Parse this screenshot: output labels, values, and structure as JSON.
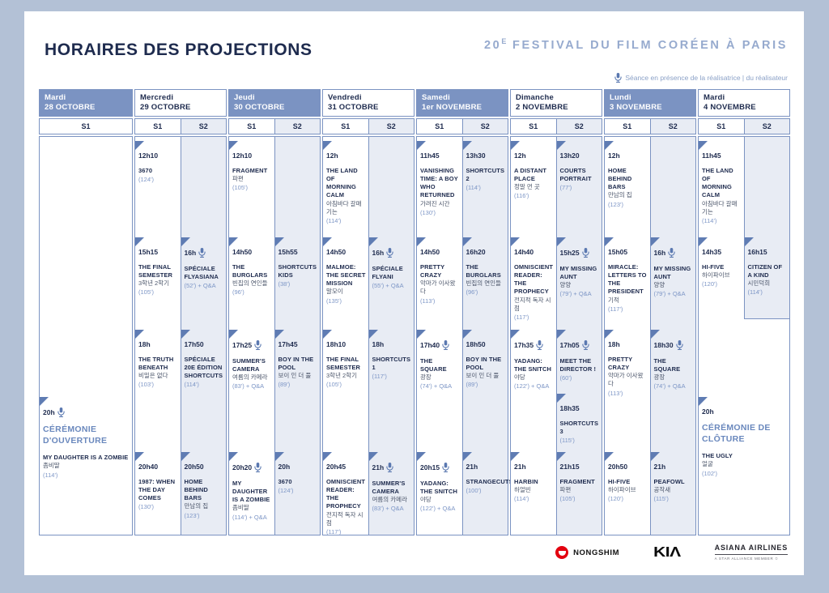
{
  "page": {
    "title": "HORAIRES DES PROJECTIONS",
    "festival_num": "20",
    "festival_sup": "E",
    "festival_rest": " FESTIVAL DU FILM CORÉEN À PARIS",
    "legend": "Séance en présence de la réalisatrice | du réalisateur"
  },
  "colors": {
    "frame": "#b3c1d6",
    "navy": "#1e2b4e",
    "header_blue": "#7b93c2",
    "s2_bg": "#e8ecf4",
    "duration_blue": "#7d96c6",
    "ceremony_blue": "#6a88bd",
    "triangle_blue": "#5f7cb3",
    "nongshim_red": "#e3000f"
  },
  "days": [
    {
      "name": "Mardi",
      "date": "28 OCTOBRE",
      "header": "blue",
      "wide": true,
      "screens": [
        {
          "label": "S1",
          "sessions": [
            {
              "row": "cer",
              "time": "20h",
              "mic": true,
              "ceremony": "CÉRÉMONIE D'OUVERTURE",
              "title": "MY DAUGHTER IS A ZOMBIE",
              "kr": "좀비딸",
              "dur": "(114')"
            }
          ]
        }
      ]
    },
    {
      "name": "Mercredi",
      "date": "29 OCTOBRE",
      "header": "light",
      "screens": [
        {
          "label": "S1",
          "sessions": [
            {
              "row": "r0",
              "time": "12h10",
              "title": "3670",
              "dur": "(124')"
            },
            {
              "row": "r1",
              "time": "15h15",
              "title": "THE FINAL SEMESTER",
              "kr": "3학년 2학기",
              "dur": "(105')"
            },
            {
              "row": "r2",
              "time": "18h",
              "title": "THE TRUTH BENEATH",
              "kr": "비밀은 없다",
              "dur": "(103')"
            },
            {
              "row": "r3",
              "time": "20h40",
              "title": "1987: WHEN THE DAY COMES",
              "dur": "(130')"
            }
          ]
        },
        {
          "label": "S2",
          "sessions": [
            {
              "row": "r1",
              "time": "16h",
              "mic": true,
              "title": "SPÉCIALE FLYASIANA",
              "dur": "(52') + Q&A"
            },
            {
              "row": "r2",
              "time": "17h50",
              "title": "SPÉCIALE 20E ÉDITION SHORTCUTS",
              "dur": "(114')"
            },
            {
              "row": "r3",
              "time": "20h50",
              "title": "HOME BEHIND BARS",
              "kr": "만남의 집",
              "dur": "(123')"
            }
          ]
        }
      ]
    },
    {
      "name": "Jeudi",
      "date": "30 OCTOBRE",
      "header": "blue",
      "screens": [
        {
          "label": "S1",
          "sessions": [
            {
              "row": "r0",
              "time": "12h10",
              "title": "FRAGMENT",
              "kr": "파편",
              "dur": "(105')"
            },
            {
              "row": "r1",
              "time": "14h50",
              "title": "THE BURGLARS",
              "kr": "빈집의 연인들",
              "dur": "(96')"
            },
            {
              "row": "r2",
              "time": "17h25",
              "mic": true,
              "title": "SUMMER'S CAMERA",
              "kr": "여름의 카메라",
              "dur": "(83') + Q&A"
            },
            {
              "row": "r3",
              "time": "20h20",
              "mic": true,
              "title": "MY DAUGHTER IS A ZOMBIE",
              "kr": "좀비딸",
              "dur": "(114') + Q&A"
            }
          ]
        },
        {
          "label": "S2",
          "sessions": [
            {
              "row": "r1",
              "time": "15h55",
              "title": "SHORTCUTS KIDS",
              "dur": "(38')"
            },
            {
              "row": "r2",
              "time": "17h45",
              "title": "BOY IN THE POOL",
              "kr": "보이 인 더 풀",
              "dur": "(89')"
            },
            {
              "row": "r3",
              "time": "20h",
              "title": "3670",
              "dur": "(124')"
            }
          ]
        }
      ]
    },
    {
      "name": "Vendredi",
      "date": "31 OCTOBRE",
      "header": "light",
      "screens": [
        {
          "label": "S1",
          "sessions": [
            {
              "row": "r0",
              "time": "12h",
              "title": "THE LAND OF MORNING CALM",
              "kr": "아침바다 갈매기는",
              "dur": "(114')"
            },
            {
              "row": "r1",
              "time": "14h50",
              "title": "MALMOE: THE SECRET MISSION",
              "kr": "말모이",
              "dur": "(135')"
            },
            {
              "row": "r2",
              "time": "18h10",
              "title": "THE FINAL SEMESTER",
              "kr": "3학년 2학기",
              "dur": "(105')"
            },
            {
              "row": "r3",
              "time": "20h45",
              "title": "OMNISCIENT READER: THE PROPHECY",
              "kr": "전지적 독자 시점",
              "dur": "(117')"
            }
          ]
        },
        {
          "label": "S2",
          "sessions": [
            {
              "row": "r1",
              "time": "16h",
              "mic": true,
              "title": "SPÉCIALE FLYANI",
              "dur": "(55') + Q&A"
            },
            {
              "row": "r2",
              "time": "18h",
              "title": "SHORTCUTS 1",
              "dur": "(117')"
            },
            {
              "row": "r3",
              "time": "21h",
              "mic": true,
              "title": "SUMMER'S CAMERA",
              "kr": "여름의 카메라",
              "dur": "(83') + Q&A"
            }
          ]
        }
      ]
    },
    {
      "name": "Samedi",
      "date": "1er NOVEMBRE",
      "header": "blue",
      "screens": [
        {
          "label": "S1",
          "sessions": [
            {
              "row": "r0",
              "time": "11h45",
              "title": "VANISHING TIME: A BOY WHO RETURNED",
              "kr": "가려진 시간",
              "dur": "(130')"
            },
            {
              "row": "r1",
              "time": "14h50",
              "title": "PRETTY CRAZY",
              "kr": "악마가 이사왔다",
              "dur": "(113')"
            },
            {
              "row": "r2",
              "time": "17h40",
              "mic": true,
              "title": "THE SQUARE",
              "kr": "광장",
              "dur": "(74') + Q&A"
            },
            {
              "row": "r3",
              "time": "20h15",
              "mic": true,
              "title": "YADANG: THE SNITCH",
              "kr": "야당",
              "dur": "(122') + Q&A"
            }
          ]
        },
        {
          "label": "S2",
          "sessions": [
            {
              "row": "r0",
              "time": "13h30",
              "title": "SHORTCUTS 2",
              "dur": "(114')"
            },
            {
              "row": "r1",
              "time": "16h20",
              "title": "THE BURGLARS",
              "kr": "빈집의 연인들",
              "dur": "(96')"
            },
            {
              "row": "r2",
              "time": "18h50",
              "title": "BOY IN THE POOL",
              "kr": "보이 인 더 풀",
              "dur": "(89')"
            },
            {
              "row": "r3",
              "time": "21h",
              "title": "STRANGECUTS",
              "dur": "(100')"
            }
          ]
        }
      ]
    },
    {
      "name": "Dimanche",
      "date": "2 NOVEMBRE",
      "header": "light",
      "screens": [
        {
          "label": "S1",
          "sessions": [
            {
              "row": "r0",
              "time": "12h",
              "title": "A DISTANT PLACE",
              "kr": "정말 먼 곳",
              "dur": "(116')"
            },
            {
              "row": "r1",
              "time": "14h40",
              "title": "OMNISCIENT READER: THE PROPHECY",
              "kr": "전지적 독자 시점",
              "dur": "(117')"
            },
            {
              "row": "r2",
              "time": "17h35",
              "mic": true,
              "title": "YADANG: THE SNITCH",
              "kr": "야당",
              "dur": "(122') + Q&A"
            },
            {
              "row": "r3",
              "time": "21h",
              "title": "HARBIN",
              "kr": "하얼빈",
              "dur": "(114')"
            }
          ]
        },
        {
          "label": "S2",
          "sessions": [
            {
              "row": "r0",
              "time": "13h20",
              "title": "COURTS PORTRAIT",
              "dur": "(77')"
            },
            {
              "row": "r1",
              "time": "15h25",
              "mic": true,
              "title": "MY MISSING AUNT",
              "kr": "양양",
              "dur": "(79') + Q&A"
            },
            {
              "row": "r2",
              "time": "17h05",
              "mic": true,
              "title": "MEET THE DIRECTOR !",
              "dur": "(60')"
            },
            {
              "row": "r2b",
              "time": "18h35",
              "title": "SHORTCUTS 3",
              "dur": "(115')"
            },
            {
              "row": "r3",
              "time": "21h15",
              "title": "FRAGMENT",
              "kr": "파편",
              "dur": "(105')"
            }
          ]
        }
      ]
    },
    {
      "name": "Lundi",
      "date": "3 NOVEMBRE",
      "header": "blue",
      "screens": [
        {
          "label": "S1",
          "sessions": [
            {
              "row": "r0",
              "time": "12h",
              "title": "HOME BEHIND BARS",
              "kr": "만남의 집",
              "dur": "(123')"
            },
            {
              "row": "r1",
              "time": "15h05",
              "title": "MIRACLE: LETTERS TO THE PRESIDENT",
              "kr": "기적",
              "dur": "(117')"
            },
            {
              "row": "r2",
              "time": "18h",
              "title": "PRETTY CRAZY",
              "kr": "악마가 이사왔다",
              "dur": "(113')"
            },
            {
              "row": "r3",
              "time": "20h50",
              "title": "HI-FIVE",
              "kr": "하이파이브",
              "dur": "(120')"
            }
          ]
        },
        {
          "label": "S2",
          "sessions": [
            {
              "row": "r1",
              "time": "16h",
              "mic": true,
              "title": "MY MISSING AUNT",
              "kr": "양양",
              "dur": "(79') + Q&A"
            },
            {
              "row": "r2",
              "time": "18h30",
              "mic": true,
              "title": "THE SQUARE",
              "kr": "광장",
              "dur": "(74') + Q&A"
            },
            {
              "row": "r3",
              "time": "21h",
              "title": "PEAFOWL",
              "kr": "공작새",
              "dur": "(115')"
            }
          ]
        }
      ]
    },
    {
      "name": "Mardi",
      "date": "4 NOVEMBRE",
      "header": "light",
      "last": true,
      "screens": [
        {
          "label": "S1",
          "sessions": [
            {
              "row": "r0",
              "time": "11h45",
              "title": "THE LAND OF MORNING CALM",
              "kr": "아침바다 갈매기는",
              "dur": "(114')"
            },
            {
              "row": "r1",
              "time": "14h35",
              "title": "HI-FIVE",
              "kr": "하이파이브",
              "dur": "(120')"
            }
          ]
        },
        {
          "label": "S2",
          "short": true,
          "sessions": [
            {
              "row": "r1",
              "time": "16h15",
              "title": "CITIZEN OF A KIND",
              "kr": "시민덕희",
              "dur": "(114')"
            }
          ]
        }
      ],
      "span_sessions": [
        {
          "row": "cer",
          "time": "20h",
          "ceremony": "CÉRÉMONIE DE CLÔTURE",
          "title": "THE UGLY",
          "kr": "얼굴",
          "dur": "(102')"
        }
      ]
    }
  ],
  "sponsors": {
    "nongshim": "NONGSHIM",
    "kia": "KIΛ",
    "asiana": "ASIANA AIRLINES",
    "asiana_sub": "A STAR ALLIANCE MEMBER ✩"
  }
}
